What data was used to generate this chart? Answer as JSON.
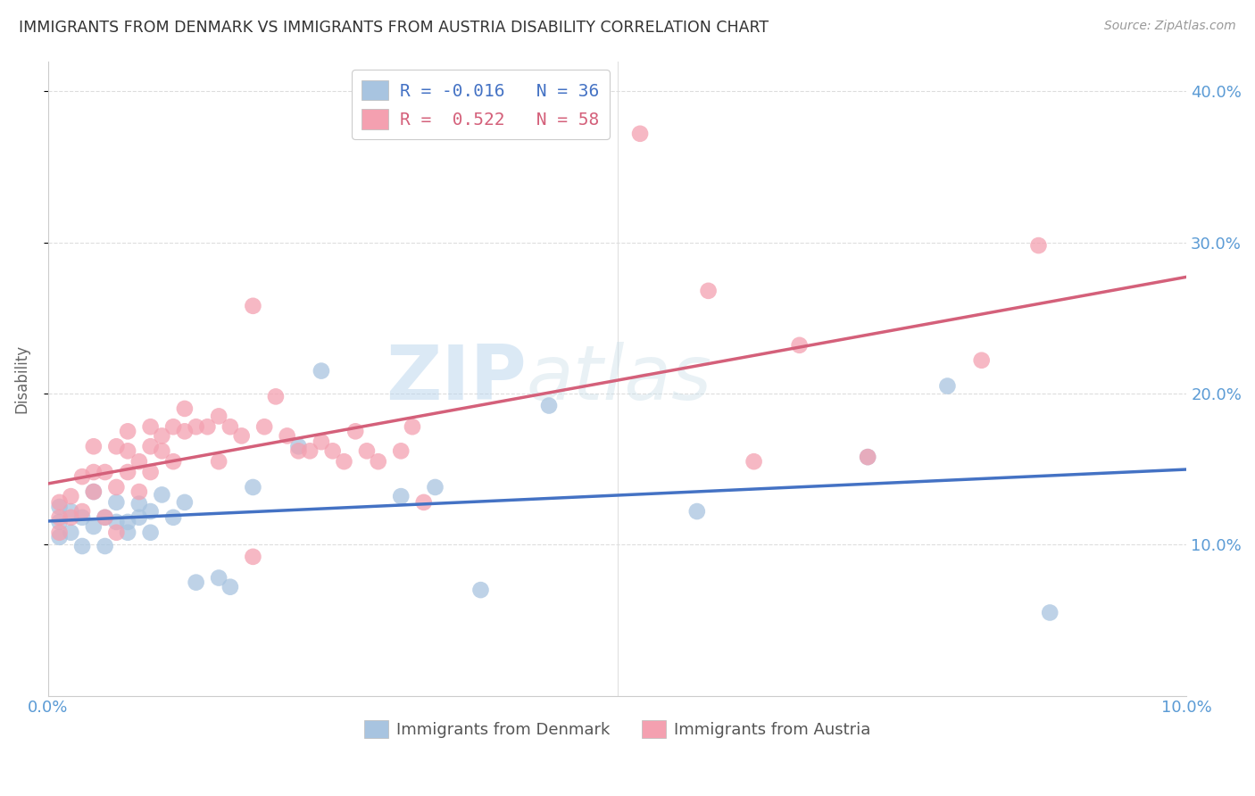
{
  "title": "IMMIGRANTS FROM DENMARK VS IMMIGRANTS FROM AUSTRIA DISABILITY CORRELATION CHART",
  "source": "Source: ZipAtlas.com",
  "ylabel": "Disability",
  "xlim": [
    0.0,
    0.1
  ],
  "ylim": [
    0.0,
    0.42
  ],
  "yticks": [
    0.1,
    0.2,
    0.3,
    0.4
  ],
  "ytick_labels": [
    "10.0%",
    "20.0%",
    "30.0%",
    "40.0%"
  ],
  "xtick_labels": [
    "0.0%",
    "",
    "",
    "",
    "",
    "",
    "",
    "",
    "",
    "",
    "10.0%"
  ],
  "xticks": [
    0.0,
    0.01,
    0.02,
    0.03,
    0.04,
    0.05,
    0.06,
    0.07,
    0.08,
    0.09,
    0.1
  ],
  "denmark_R": -0.016,
  "denmark_N": 36,
  "austria_R": 0.522,
  "austria_N": 58,
  "denmark_color": "#a8c4e0",
  "austria_color": "#f4a0b0",
  "denmark_line_color": "#4472c4",
  "austria_line_color": "#d4607a",
  "legend_label_denmark": "Immigrants from Denmark",
  "legend_label_austria": "Immigrants from Austria",
  "watermark_zip": "ZIP",
  "watermark_atlas": "atlas",
  "denmark_x": [
    0.001,
    0.001,
    0.001,
    0.002,
    0.002,
    0.003,
    0.003,
    0.004,
    0.004,
    0.005,
    0.005,
    0.006,
    0.006,
    0.007,
    0.007,
    0.008,
    0.008,
    0.009,
    0.009,
    0.01,
    0.011,
    0.012,
    0.013,
    0.015,
    0.016,
    0.018,
    0.022,
    0.024,
    0.031,
    0.034,
    0.038,
    0.044,
    0.057,
    0.072,
    0.079,
    0.088
  ],
  "denmark_y": [
    0.125,
    0.115,
    0.105,
    0.122,
    0.108,
    0.118,
    0.099,
    0.135,
    0.112,
    0.118,
    0.099,
    0.128,
    0.115,
    0.115,
    0.108,
    0.127,
    0.118,
    0.122,
    0.108,
    0.133,
    0.118,
    0.128,
    0.075,
    0.078,
    0.072,
    0.138,
    0.165,
    0.215,
    0.132,
    0.138,
    0.07,
    0.192,
    0.122,
    0.158,
    0.205,
    0.055
  ],
  "austria_x": [
    0.001,
    0.001,
    0.001,
    0.002,
    0.002,
    0.003,
    0.003,
    0.004,
    0.004,
    0.004,
    0.005,
    0.005,
    0.006,
    0.006,
    0.006,
    0.007,
    0.007,
    0.007,
    0.008,
    0.008,
    0.009,
    0.009,
    0.009,
    0.01,
    0.01,
    0.011,
    0.011,
    0.012,
    0.012,
    0.013,
    0.014,
    0.015,
    0.015,
    0.016,
    0.017,
    0.018,
    0.018,
    0.019,
    0.02,
    0.021,
    0.022,
    0.023,
    0.024,
    0.025,
    0.026,
    0.027,
    0.028,
    0.029,
    0.031,
    0.032,
    0.033,
    0.052,
    0.058,
    0.062,
    0.066,
    0.072,
    0.082,
    0.087
  ],
  "austria_y": [
    0.128,
    0.118,
    0.108,
    0.132,
    0.118,
    0.145,
    0.122,
    0.148,
    0.135,
    0.165,
    0.148,
    0.118,
    0.165,
    0.138,
    0.108,
    0.148,
    0.162,
    0.175,
    0.155,
    0.135,
    0.165,
    0.178,
    0.148,
    0.172,
    0.162,
    0.155,
    0.178,
    0.19,
    0.175,
    0.178,
    0.178,
    0.185,
    0.155,
    0.178,
    0.172,
    0.258,
    0.092,
    0.178,
    0.198,
    0.172,
    0.162,
    0.162,
    0.168,
    0.162,
    0.155,
    0.175,
    0.162,
    0.155,
    0.162,
    0.178,
    0.128,
    0.372,
    0.268,
    0.155,
    0.232,
    0.158,
    0.222,
    0.298
  ]
}
